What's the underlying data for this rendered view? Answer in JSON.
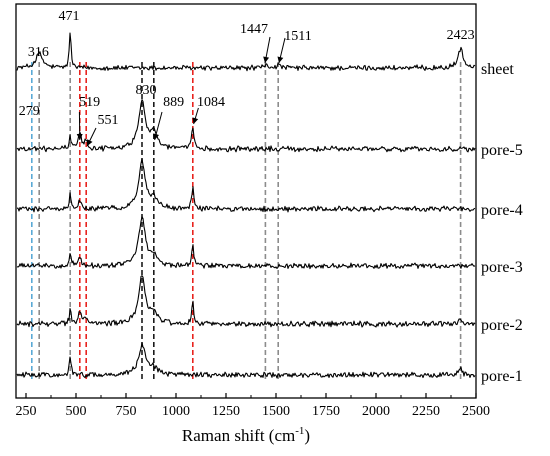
{
  "chart_data": {
    "type": "line",
    "xlabel_main": "Raman shift (cm",
    "xlabel_sup": "-1",
    "xlabel_end": ")",
    "xlim": [
      200,
      2500
    ],
    "x_ticks": [
      250,
      500,
      750,
      1000,
      1250,
      1500,
      1750,
      2000,
      2250,
      2500
    ],
    "series": [
      {
        "name": "sheet",
        "peaks": [
          {
            "x": 316,
            "h": 0.3,
            "w": 20
          },
          {
            "x": 471,
            "h": 0.78,
            "w": 5
          },
          {
            "x": 1447,
            "h": 0.05,
            "w": 15
          },
          {
            "x": 1511,
            "h": 0.05,
            "w": 15
          },
          {
            "x": 2423,
            "h": 0.42,
            "w": 14
          }
        ]
      },
      {
        "name": "pore-5",
        "peaks": [
          {
            "x": 471,
            "h": 0.3,
            "w": 5
          },
          {
            "x": 519,
            "h": 0.3,
            "w": 10
          },
          {
            "x": 551,
            "h": 0.15,
            "w": 10
          },
          {
            "x": 830,
            "h": 1.0,
            "w": 20
          },
          {
            "x": 889,
            "h": 0.35,
            "w": 20
          },
          {
            "x": 1084,
            "h": 0.45,
            "w": 6
          }
        ]
      },
      {
        "name": "pore-4",
        "peaks": [
          {
            "x": 471,
            "h": 0.3,
            "w": 5
          },
          {
            "x": 519,
            "h": 0.15,
            "w": 10
          },
          {
            "x": 830,
            "h": 1.0,
            "w": 20
          },
          {
            "x": 889,
            "h": 0.2,
            "w": 20
          },
          {
            "x": 1084,
            "h": 0.45,
            "w": 6
          }
        ]
      },
      {
        "name": "pore-3",
        "peaks": [
          {
            "x": 471,
            "h": 0.3,
            "w": 5
          },
          {
            "x": 519,
            "h": 0.15,
            "w": 10
          },
          {
            "x": 830,
            "h": 1.0,
            "w": 20
          },
          {
            "x": 889,
            "h": 0.2,
            "w": 20
          },
          {
            "x": 1084,
            "h": 0.45,
            "w": 6
          }
        ]
      },
      {
        "name": "pore-2",
        "peaks": [
          {
            "x": 471,
            "h": 0.3,
            "w": 5
          },
          {
            "x": 519,
            "h": 0.25,
            "w": 10
          },
          {
            "x": 551,
            "h": 0.1,
            "w": 10
          },
          {
            "x": 830,
            "h": 1.0,
            "w": 20
          },
          {
            "x": 889,
            "h": 0.2,
            "w": 20
          },
          {
            "x": 1084,
            "h": 0.45,
            "w": 6
          },
          {
            "x": 2423,
            "h": 0.1,
            "w": 10
          }
        ]
      },
      {
        "name": "pore-1",
        "peaks": [
          {
            "x": 471,
            "h": 0.45,
            "w": 5
          },
          {
            "x": 830,
            "h": 0.6,
            "w": 22
          },
          {
            "x": 889,
            "h": 0.15,
            "w": 20
          },
          {
            "x": 2423,
            "h": 0.15,
            "w": 10
          }
        ]
      }
    ],
    "reference_lines": [
      {
        "x": 279,
        "color": "#5aa9d6"
      },
      {
        "x": 316,
        "color": "#8c8c8c"
      },
      {
        "x": 471,
        "color": "#8c8c8c"
      },
      {
        "x": 519,
        "color": "#e8231e"
      },
      {
        "x": 551,
        "color": "#e8231e"
      },
      {
        "x": 830,
        "color": "#1a1a1a"
      },
      {
        "x": 889,
        "color": "#1a1a1a"
      },
      {
        "x": 1084,
        "color": "#e8231e"
      },
      {
        "x": 1447,
        "color": "#8c8c8c"
      },
      {
        "x": 1511,
        "color": "#8c8c8c"
      },
      {
        "x": 2423,
        "color": "#8c8c8c"
      }
    ],
    "annotations": [
      {
        "text": "471",
        "x": 471
      },
      {
        "text": "316",
        "x": 316
      },
      {
        "text": "1447",
        "x": 1447
      },
      {
        "text": "1511",
        "x": 1511
      },
      {
        "text": "2423",
        "x": 2423
      },
      {
        "text": "830",
        "x": 830
      },
      {
        "text": "279",
        "x": 279
      },
      {
        "text": "519",
        "x": 519
      },
      {
        "text": "551",
        "x": 551
      },
      {
        "text": "889",
        "x": 889
      },
      {
        "text": "1084",
        "x": 1084
      }
    ],
    "grid": false
  }
}
